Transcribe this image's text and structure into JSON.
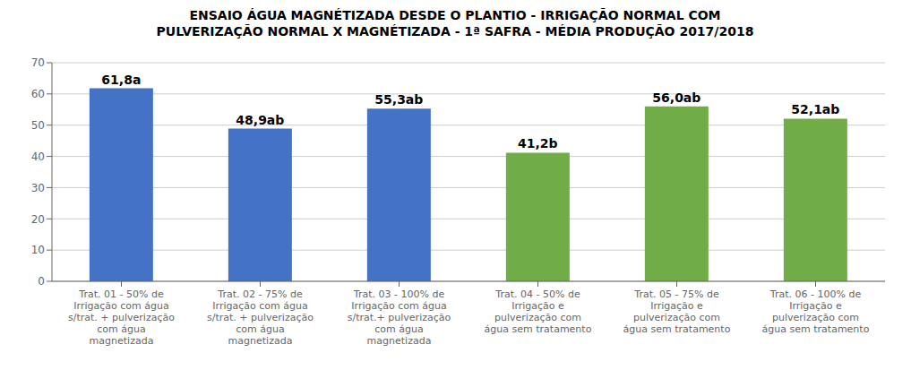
{
  "chart_data": {
    "type": "bar",
    "title": "ENSAIO ÁGUA MAGNÉTIZADA DESDE O PLANTIO - IRRIGAÇÃO NORMAL COM\nPULVERIZAÇÃO NORMAL X MAGNÉTIZADA - 1ª SAFRA - MÉDIA PRODUÇÃO 2017/2018",
    "categories": [
      "Trat. 01 - 50% de\nIrrigação com água\ns/trat. + pulverização\ncom água\nmagnetizada",
      "Trat. 02 - 75% de\nIrrigação com água\ns/trat. + pulverização\ncom água\nmagnetizada",
      "Trat. 03 - 100% de\nIrrigação com água\ns/trat.+ pulverização\ncom água\nmagnetizada",
      "Trat. 04 - 50% de\nIrrigação e\npulverização com\nágua sem tratamento",
      "Trat. 05 - 75% de\nIrrigação e\npulverização com\nágua sem tratamento",
      "Trat. 06 - 100% de\nIrrigação e\npulverização com\nágua sem tratamento"
    ],
    "values": [
      61.8,
      48.9,
      55.3,
      41.2,
      56.0,
      52.1
    ],
    "value_labels": [
      "61,8a",
      "48,9ab",
      "55,3ab",
      "41,2b",
      "56,0ab",
      "52,1ab"
    ],
    "data_labels": true,
    "colors": [
      "#4472C4",
      "#4472C4",
      "#4472C4",
      "#70AD47",
      "#70AD47",
      "#70AD47"
    ],
    "ylim": [
      0,
      70
    ],
    "yticks": [
      0,
      10,
      20,
      30,
      40,
      50,
      60,
      70
    ],
    "grid": true
  }
}
